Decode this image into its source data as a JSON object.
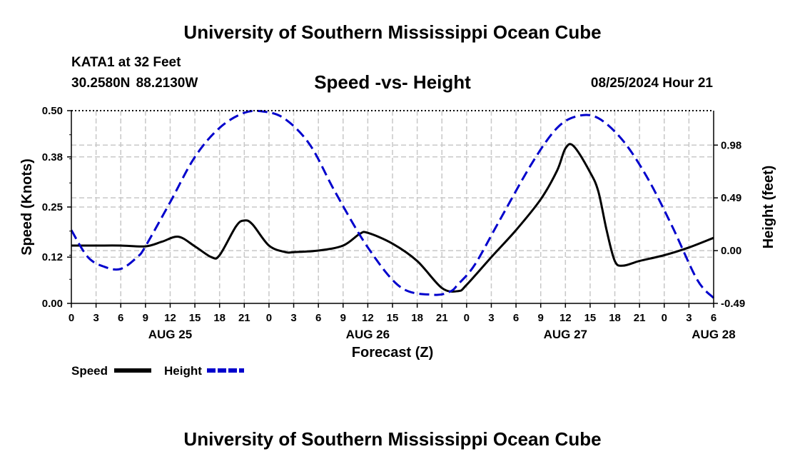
{
  "header": {
    "title": "University of Southern Mississippi Ocean Cube",
    "station": "KATA1 at 32 Feet",
    "coordinates": "30.2580N  88.2130W",
    "subtitle": "Speed -vs- Height",
    "datetime": "08/25/2024 Hour 21"
  },
  "footer": {
    "title": "University of Southern Mississippi Ocean Cube"
  },
  "chart_data": {
    "type": "line",
    "title": "Speed -vs- Height",
    "xlabel": "Forecast (Z)",
    "ylabel": "Speed (Knots)",
    "y2label": "Height (feet)",
    "x_range_hours": [
      0,
      78
    ],
    "ylim": [
      0,
      0.5
    ],
    "y2lim": [
      -0.49,
      1.3
    ],
    "y_ticks": [
      "0.50",
      "0.38",
      "0.25",
      "0.12",
      "0.00"
    ],
    "y_tick_values": [
      0.5,
      0.38,
      0.25,
      0.12,
      0.0
    ],
    "y2_ticks": [
      "0.98",
      "0.49",
      "0.00",
      "-0.49"
    ],
    "y2_tick_values": [
      0.98,
      0.49,
      0.0,
      -0.49
    ],
    "x_tick_labels": [
      "0",
      "3",
      "6",
      "9",
      "12",
      "15",
      "18",
      "21",
      "0",
      "3",
      "6",
      "9",
      "12",
      "15",
      "18",
      "21",
      "0",
      "3",
      "6",
      "9",
      "12",
      "15",
      "18",
      "21",
      "0",
      "3",
      "6"
    ],
    "day_labels": [
      {
        "label": "AUG 25",
        "hour": 12
      },
      {
        "label": "AUG 26",
        "hour": 36
      },
      {
        "label": "AUG 27",
        "hour": 60
      },
      {
        "label": "AUG 28",
        "hour": 78
      }
    ],
    "grid": true,
    "legend_position": "bottom-left",
    "series": [
      {
        "name": "Speed",
        "axis": "left",
        "color": "#000000",
        "dash": "solid",
        "hours": [
          0,
          3,
          6,
          9,
          11,
          13,
          15,
          17,
          18,
          20,
          21,
          22,
          24,
          26,
          27,
          30,
          33,
          35,
          36,
          39,
          42,
          45,
          47,
          48,
          51,
          54,
          57,
          59,
          60,
          61,
          63,
          64,
          65,
          66,
          67,
          69,
          72,
          75,
          78
        ],
        "values": [
          0.15,
          0.15,
          0.15,
          0.148,
          0.16,
          0.173,
          0.148,
          0.12,
          0.125,
          0.2,
          0.215,
          0.205,
          0.15,
          0.133,
          0.133,
          0.137,
          0.15,
          0.18,
          0.183,
          0.155,
          0.11,
          0.04,
          0.032,
          0.048,
          0.12,
          0.19,
          0.27,
          0.345,
          0.402,
          0.408,
          0.34,
          0.29,
          0.19,
          0.11,
          0.098,
          0.11,
          0.125,
          0.145,
          0.17
        ]
      },
      {
        "name": "Height",
        "axis": "right",
        "color": "#0000cc",
        "dash": "dashed",
        "hours": [
          0,
          2,
          4,
          6,
          8,
          9,
          12,
          15,
          18,
          21,
          23.5,
          26,
          29,
          32,
          36,
          40,
          44,
          46,
          47,
          49,
          52,
          56,
          59,
          61.5,
          64,
          67,
          70,
          73,
          76,
          78
        ],
        "values": [
          0.19,
          -0.06,
          -0.15,
          -0.17,
          -0.06,
          0.04,
          0.45,
          0.87,
          1.14,
          1.28,
          1.29,
          1.22,
          0.98,
          0.55,
          0.03,
          -0.34,
          -0.41,
          -0.38,
          -0.31,
          -0.13,
          0.28,
          0.82,
          1.14,
          1.25,
          1.23,
          1.02,
          0.67,
          0.22,
          -0.27,
          -0.44
        ]
      }
    ]
  }
}
